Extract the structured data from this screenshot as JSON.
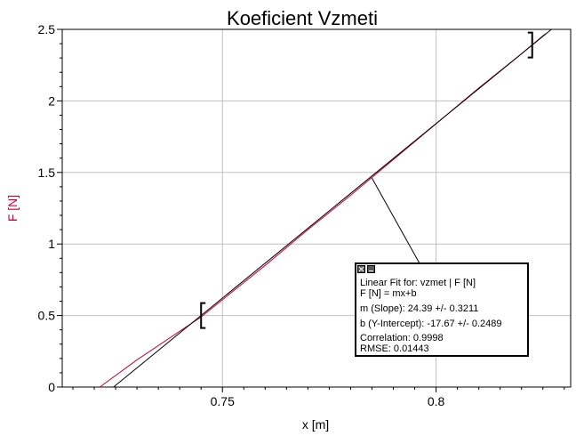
{
  "chart_data": {
    "type": "line",
    "title": "Koeficient Vzmeti",
    "xlabel": "x [m]",
    "ylabel": "F [N]",
    "xlim": [
      0.7125,
      0.8315
    ],
    "ylim": [
      0,
      2.5
    ],
    "x_ticks": [
      "0.75",
      "0.8"
    ],
    "y_ticks": [
      "0",
      "0.5",
      "1",
      "1.5",
      "2",
      "2.5"
    ],
    "grid": true,
    "series": [
      {
        "values_x": [
          0.7213,
          0.73,
          0.74,
          0.745,
          0.75,
          0.76,
          0.77,
          0.78,
          0.79,
          0.8,
          0.81,
          0.82,
          0.8256
        ],
        "values_y": [
          0.0,
          0.19,
          0.39,
          0.49,
          0.61,
          0.85,
          1.1,
          1.34,
          1.59,
          1.84,
          2.09,
          2.33,
          2.47
        ],
        "color": "#cc0033"
      },
      {
        "values_x": [
          0.7245,
          0.827
        ],
        "values_y": [
          0.0,
          2.5
        ],
        "color": "#000000"
      }
    ],
    "selection_brackets": [
      0.745,
      0.8225
    ],
    "fit_box": {
      "title": "Linear Fit for: vzmet | F [N]",
      "equation": "F [N] = mx+b",
      "slope": "m (Slope): 24.39 +/- 0.3211",
      "intercept": "b (Y-Intercept): -17.67 +/- 0.2489",
      "correlation": "Correlation: 0.9998",
      "rmse": "RMSE: 0.01443",
      "pointer_to": [
        0.785,
        1.46
      ]
    }
  },
  "colors": {
    "ylabel": "#cc0033",
    "data_line": "#cc0033",
    "fit_line": "#000000",
    "grid": "#c0c0c0"
  }
}
